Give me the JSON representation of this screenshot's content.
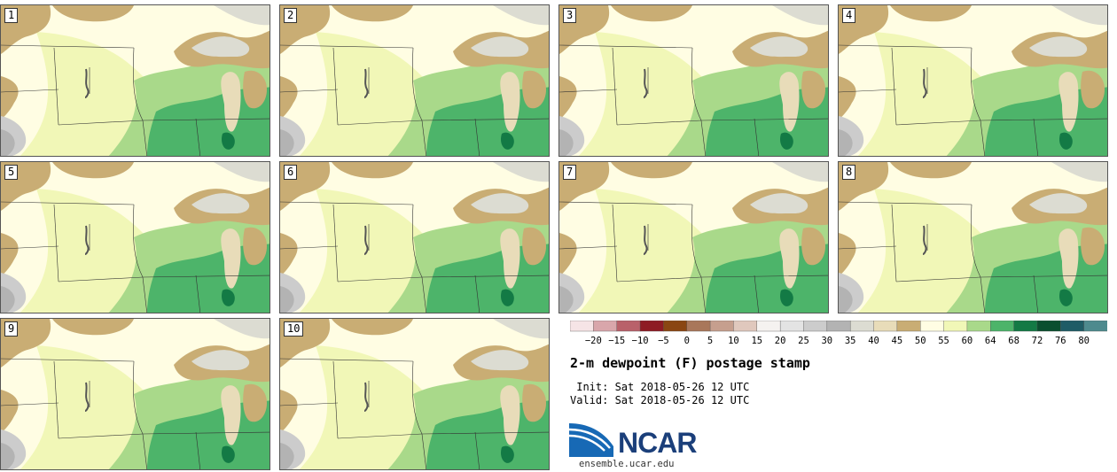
{
  "panels": [
    {
      "label": "1"
    },
    {
      "label": "2"
    },
    {
      "label": "3"
    },
    {
      "label": "4"
    },
    {
      "label": "5"
    },
    {
      "label": "6"
    },
    {
      "label": "7"
    },
    {
      "label": "8"
    },
    {
      "label": "9"
    },
    {
      "label": "10"
    }
  ],
  "colorbar": {
    "ticks": [
      "-20",
      "-15",
      "-10",
      "-5",
      "0",
      "5",
      "10",
      "15",
      "20",
      "25",
      "30",
      "35",
      "40",
      "45",
      "50",
      "55",
      "60",
      "64",
      "68",
      "72",
      "76",
      "80"
    ],
    "colors": [
      "#f6e4e6",
      "#d9a6ab",
      "#b9616a",
      "#8e1b24",
      "#8a4612",
      "#a9775a",
      "#c69f8e",
      "#e0c8bd",
      "#f5f2f0",
      "#e3e3e3",
      "#cccccc",
      "#b3b3b3",
      "#dcdcd2",
      "#e8dcb9",
      "#c9ad74",
      "#fffde3",
      "#f1f7b7",
      "#a9d98a",
      "#4db46a",
      "#137a45",
      "#0a4f2f",
      "#1f5c66",
      "#4e8a8e"
    ]
  },
  "title": "2-m dewpoint (F) postage stamp",
  "init_line": " Init: Sat 2018-05-26 12 UTC",
  "valid_line": "Valid: Sat 2018-05-26 12 UTC",
  "logo_text": "NCAR",
  "site": "ensemble.ucar.edu"
}
